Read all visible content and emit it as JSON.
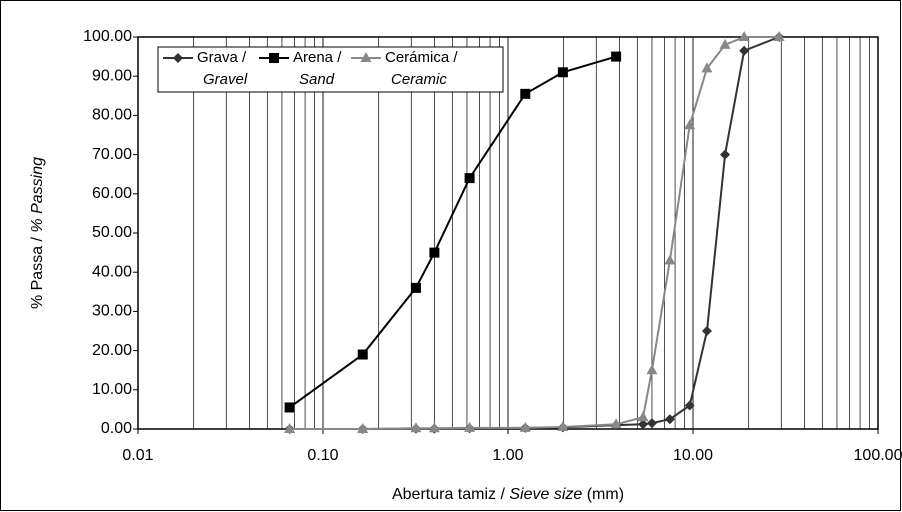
{
  "chart_data": {
    "type": "line",
    "xlabel": [
      "Abertura tamiz / ",
      "Sieve size",
      " (mm)"
    ],
    "ylabel": [
      "% Passa / ",
      "% Passing"
    ],
    "x": [
      0.066,
      0.164,
      0.318,
      0.4,
      0.62,
      1.24,
      1.98,
      3.84,
      5.37,
      6.0,
      7.5,
      9.6,
      11.9,
      14.9,
      18.9,
      29.2
    ],
    "series": [
      {
        "name": "Grava /",
        "name_en": "Gravel",
        "color": "#333333",
        "marker": "diamond",
        "values": [
          0,
          0,
          0.1,
          0.1,
          0.2,
          0.3,
          0.4,
          1.0,
          1.2,
          1.5,
          2.5,
          6,
          25,
          70,
          96.5,
          100
        ]
      },
      {
        "name": "Arena /",
        "name_en": "Sand",
        "color": "#000000",
        "marker": "square",
        "values": [
          5.5,
          19,
          36,
          45,
          64,
          85.5,
          91,
          95,
          null,
          null,
          null,
          null,
          null,
          null,
          null,
          null
        ]
      },
      {
        "name": "Cerámica /",
        "name_en": "Ceramic",
        "color": "#888888",
        "marker": "triangle",
        "values": [
          0,
          0,
          0.2,
          0.2,
          0.3,
          0.3,
          0.5,
          1.2,
          3,
          15,
          43,
          77.5,
          92,
          98,
          100,
          100
        ]
      }
    ],
    "xlim": [
      0.01,
      100
    ],
    "xscale": "log",
    "xticks": [
      {
        "value": 0.01,
        "label": "0.01"
      },
      {
        "value": 0.1,
        "label": "0.10"
      },
      {
        "value": 1,
        "label": "1.00"
      },
      {
        "value": 10,
        "label": "10.00"
      },
      {
        "value": 100,
        "label": "100.00"
      }
    ],
    "ylim": [
      0,
      100
    ],
    "yticks": [
      {
        "value": 0,
        "label": "0.00"
      },
      {
        "value": 10,
        "label": "10.00"
      },
      {
        "value": 20,
        "label": "20.00"
      },
      {
        "value": 30,
        "label": "30.00"
      },
      {
        "value": 40,
        "label": "40.00"
      },
      {
        "value": 50,
        "label": "50.00"
      },
      {
        "value": 60,
        "label": "60.00"
      },
      {
        "value": 70,
        "label": "70.00"
      },
      {
        "value": 80,
        "label": "80.00"
      },
      {
        "value": 90,
        "label": "90.00"
      },
      {
        "value": 100,
        "label": "100.00"
      }
    ],
    "grid": "x",
    "minor_grid": true
  }
}
